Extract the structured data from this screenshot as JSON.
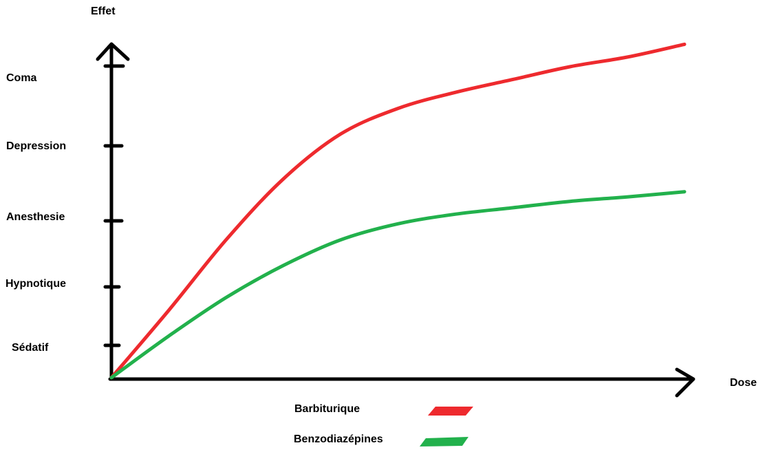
{
  "chart_data": {
    "type": "line",
    "xlabel": "Dose",
    "ylabel": "Effet",
    "y_tick_labels": [
      "Sédatif",
      "Hypnotique",
      "Anesthesie",
      "Depression",
      "Coma"
    ],
    "x_range": [
      0,
      10
    ],
    "y_range": [
      0,
      5
    ],
    "grid": false,
    "legend_position": "bottom-center",
    "series": [
      {
        "name": "Barbiturique",
        "color": "#ee2a2e",
        "x": [
          0,
          1,
          2,
          3,
          4,
          5,
          6,
          7,
          8,
          9,
          10
        ],
        "y": [
          0,
          1.05,
          2.15,
          3.1,
          3.8,
          4.2,
          4.45,
          4.65,
          4.85,
          5.0,
          5.2
        ]
      },
      {
        "name": "Benzodiazépines",
        "color": "#22b14c",
        "x": [
          0,
          1,
          2,
          3,
          4,
          5,
          6,
          7,
          8,
          9,
          10
        ],
        "y": [
          0,
          0.65,
          1.25,
          1.75,
          2.15,
          2.4,
          2.55,
          2.65,
          2.75,
          2.82,
          2.9
        ]
      }
    ]
  }
}
